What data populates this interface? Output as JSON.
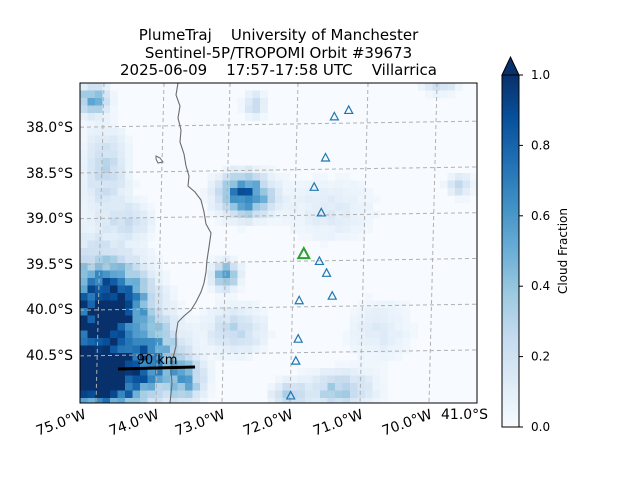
{
  "chart_data": {
    "type": "heatmap",
    "title_lines": [
      "PlumeTraj    University of Manchester",
      "Sentinel-5P/TROPOMI Orbit #39673",
      "2025-06-09    17:57-17:58 UTC    Villarrica"
    ],
    "lat_ticks": [
      "38.0°S",
      "38.5°S",
      "39.0°S",
      "39.5°S",
      "40.0°S",
      "40.5°S"
    ],
    "lon_ticks": [
      "75.0°W",
      "74.0°W",
      "73.0°W",
      "72.0°W",
      "71.0°W",
      "70.0°W"
    ],
    "extra_lat_tick": "41.0°S",
    "colorbar": {
      "label": "Cloud Fraction",
      "range": [
        0.0,
        1.0
      ],
      "ticks": [
        "0.0",
        "0.2",
        "0.4",
        "0.6",
        "0.8",
        "1.0"
      ]
    },
    "scale_bar": {
      "label": "90 km",
      "km": 90
    },
    "volcano": {
      "name": "Villarrica",
      "lat": -39.42,
      "lon": -71.93,
      "color": "#2ca02c"
    },
    "other_volcanoes": [
      {
        "lat": -37.85,
        "lon": -71.16
      },
      {
        "lat": -37.92,
        "lon": -71.38
      },
      {
        "lat": -38.37,
        "lon": -71.54
      },
      {
        "lat": -38.69,
        "lon": -71.73
      },
      {
        "lat": -38.97,
        "lon": -71.64
      },
      {
        "lat": -39.5,
        "lon": -71.7
      },
      {
        "lat": -39.63,
        "lon": -71.6
      },
      {
        "lat": -39.88,
        "lon": -71.53
      },
      {
        "lat": -39.93,
        "lon": -72.03
      },
      {
        "lat": -40.35,
        "lon": -72.07
      },
      {
        "lat": -40.59,
        "lon": -72.12
      },
      {
        "lat": -40.97,
        "lon": -72.22
      }
    ]
  }
}
